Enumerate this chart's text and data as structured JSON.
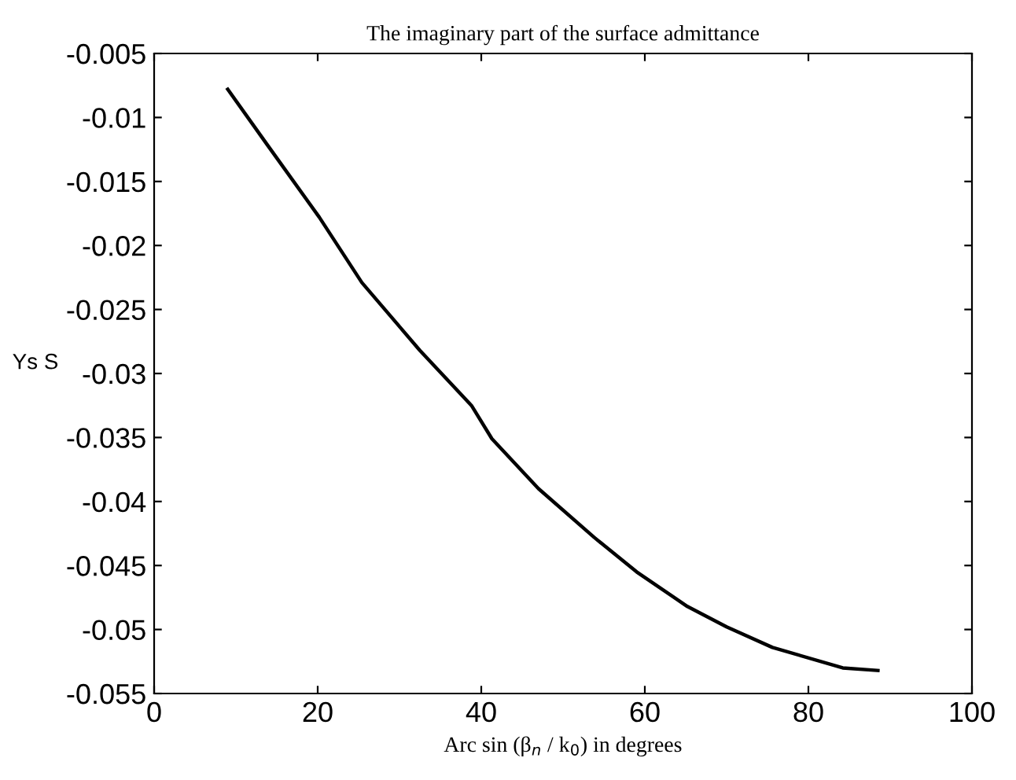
{
  "chart_data": {
    "type": "line",
    "title": "The imaginary part of the surface admittance",
    "xlabel": "Arc sin (β$_{n}$ / k$_{0}$) in degrees",
    "ylabel": "Ys S",
    "x": [
      9,
      13.8,
      20.2,
      25.4,
      32.5,
      38.8,
      41.3,
      47,
      53.8,
      59,
      65.2,
      70,
      75.6,
      84.2,
      88.5
    ],
    "series": [
      {
        "color": "#000000",
        "values": [
          -0.0078,
          -0.0121,
          -0.0178,
          -0.0229,
          -0.0282,
          -0.0325,
          -0.0351,
          -0.039,
          -0.0428,
          -0.0455,
          -0.0482,
          -0.0498,
          -0.0514,
          -0.053,
          -0.0532
        ]
      }
    ],
    "xlim": [
      0,
      100
    ],
    "xticks": [
      0,
      20,
      40,
      60,
      80,
      100
    ],
    "ylim": [
      -0.055,
      -0.005
    ],
    "yticks": [
      -0.055,
      -0.05,
      -0.045,
      -0.04,
      -0.035,
      -0.03,
      -0.025,
      -0.02,
      -0.015,
      -0.01,
      -0.005
    ],
    "grid": false,
    "marker": "none",
    "line_style": "solid"
  }
}
